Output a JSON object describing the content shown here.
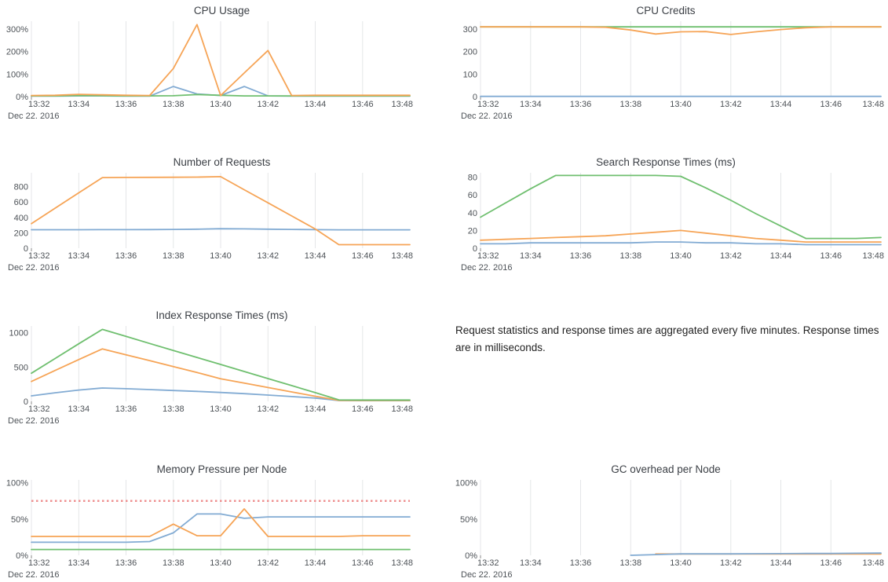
{
  "palette": {
    "blue": "#82abd3",
    "orange": "#f6a456",
    "green": "#6fbf6f",
    "red_dashed": "#ee9090",
    "grid": "#e4e6e8",
    "tick_stub": "#8a8a8a",
    "axis_text": "#4d5257",
    "title_text": "#3c4046"
  },
  "x_axis": {
    "tick_labels": [
      "13:32",
      "13:34",
      "13:36",
      "13:38",
      "13:40",
      "13:42",
      "13:44",
      "13:46",
      "13:48"
    ],
    "date_label": "Dec 22. 2016",
    "range_minutes": [
      0,
      16
    ]
  },
  "note": {
    "text": "Request statistics and response times are aggregated every five minutes. Response times are in milliseconds."
  },
  "chart_data": [
    {
      "type": "line",
      "title": "CPU Usage",
      "col": "left",
      "ylim": [
        0,
        335
      ],
      "yticks": [
        {
          "v": 0,
          "label": "0%"
        },
        {
          "v": 100,
          "label": "100%"
        },
        {
          "v": 200,
          "label": "200%"
        },
        {
          "v": 300,
          "label": "300%"
        }
      ],
      "x_minutes": [
        0,
        1,
        2,
        3,
        4,
        5,
        6,
        7,
        8,
        9,
        10,
        11,
        12,
        13,
        14,
        15,
        16
      ],
      "series": [
        {
          "name": "blue",
          "color_key": "blue",
          "y": [
            2,
            2,
            3,
            3,
            2,
            2,
            45,
            12,
            5,
            45,
            3,
            2,
            2,
            2,
            2,
            2,
            2
          ]
        },
        {
          "name": "green",
          "color_key": "green",
          "y": [
            3,
            3,
            5,
            4,
            3,
            3,
            4,
            9,
            6,
            3,
            3,
            3,
            3,
            3,
            3,
            3,
            3
          ]
        },
        {
          "name": "orange",
          "color_key": "orange",
          "y": [
            5,
            6,
            10,
            8,
            6,
            5,
            125,
            320,
            5,
            105,
            205,
            5,
            6,
            6,
            6,
            6,
            6
          ]
        }
      ]
    },
    {
      "type": "line",
      "title": "CPU Credits",
      "col": "right",
      "ylim": [
        0,
        335
      ],
      "yticks": [
        {
          "v": 0,
          "label": "0"
        },
        {
          "v": 100,
          "label": "100"
        },
        {
          "v": 200,
          "label": "200"
        },
        {
          "v": 300,
          "label": "300"
        }
      ],
      "x_minutes": [
        0,
        1,
        2,
        3,
        4,
        5,
        6,
        7,
        8,
        9,
        10,
        11,
        12,
        13,
        14,
        15,
        16
      ],
      "series": [
        {
          "name": "blue",
          "color_key": "blue",
          "y": [
            1,
            1,
            1,
            1,
            1,
            1,
            1,
            1,
            1,
            1,
            1,
            1,
            1,
            1,
            1,
            1,
            1
          ]
        },
        {
          "name": "green",
          "color_key": "green",
          "y": [
            310,
            310,
            310,
            310,
            310,
            310,
            310,
            310,
            310,
            310,
            310,
            310,
            310,
            310,
            310,
            310,
            310
          ]
        },
        {
          "name": "orange",
          "color_key": "orange",
          "y": [
            310,
            310,
            310,
            310,
            310,
            308,
            296,
            278,
            288,
            289,
            276,
            288,
            298,
            306,
            310,
            310,
            310
          ]
        }
      ]
    },
    {
      "type": "line",
      "title": "Number of Requests",
      "col": "left",
      "ylim": [
        0,
        980
      ],
      "yticks": [
        {
          "v": 0,
          "label": "0"
        },
        {
          "v": 200,
          "label": "200"
        },
        {
          "v": 400,
          "label": "400"
        },
        {
          "v": 600,
          "label": "600"
        },
        {
          "v": 800,
          "label": "800"
        }
      ],
      "x_minutes": [
        0,
        1,
        2,
        3,
        4,
        5,
        6,
        7,
        8,
        9,
        10,
        11,
        12,
        13,
        14,
        15,
        16
      ],
      "series": [
        {
          "name": "blue",
          "color_key": "blue",
          "y": [
            240,
            240,
            240,
            241,
            241,
            242,
            244,
            247,
            253,
            251,
            247,
            244,
            241,
            239,
            239,
            239,
            239
          ]
        },
        {
          "name": "orange",
          "color_key": "orange",
          "y": [
            320,
            520,
            720,
            918,
            920,
            921,
            922,
            924,
            930,
            760,
            590,
            420,
            250,
            46,
            46,
            46,
            46
          ]
        }
      ]
    },
    {
      "type": "line",
      "title": "Search Response Times (ms)",
      "col": "right",
      "ylim": [
        0,
        85
      ],
      "yticks": [
        {
          "v": 0,
          "label": "0"
        },
        {
          "v": 20,
          "label": "20"
        },
        {
          "v": 40,
          "label": "40"
        },
        {
          "v": 60,
          "label": "60"
        },
        {
          "v": 80,
          "label": "80"
        }
      ],
      "x_minutes": [
        0,
        1,
        2,
        3,
        4,
        5,
        6,
        7,
        8,
        9,
        10,
        11,
        12,
        13,
        14,
        15,
        16
      ],
      "series": [
        {
          "name": "blue",
          "color_key": "blue",
          "y": [
            5,
            5,
            6,
            6,
            6,
            6,
            6,
            7,
            7,
            6,
            6,
            5,
            5,
            4,
            4,
            4,
            4
          ]
        },
        {
          "name": "green",
          "color_key": "green",
          "y": [
            35,
            51,
            67,
            82,
            82,
            82,
            82,
            82,
            81,
            68,
            54,
            39,
            25,
            11,
            11,
            11,
            12
          ]
        },
        {
          "name": "orange",
          "color_key": "orange",
          "y": [
            9,
            10,
            11,
            12,
            13,
            14,
            16,
            18,
            20,
            17,
            14,
            11,
            9,
            7,
            7,
            7,
            7
          ]
        }
      ]
    },
    {
      "type": "line",
      "title": "Index Response Times (ms)",
      "col": "left",
      "ylim": [
        0,
        1100
      ],
      "yticks": [
        {
          "v": 0,
          "label": "0"
        },
        {
          "v": 500,
          "label": "500"
        },
        {
          "v": 1000,
          "label": "1000"
        }
      ],
      "x_minutes": [
        0,
        1,
        2,
        3,
        4,
        5,
        6,
        7,
        8,
        9,
        10,
        11,
        12,
        13,
        14,
        15,
        16
      ],
      "series": [
        {
          "name": "blue",
          "color_key": "blue",
          "y": [
            80,
            125,
            165,
            195,
            185,
            172,
            158,
            145,
            130,
            112,
            92,
            70,
            48,
            12,
            10,
            10,
            10
          ]
        },
        {
          "name": "orange",
          "color_key": "orange",
          "y": [
            290,
            450,
            610,
            765,
            680,
            595,
            508,
            420,
            330,
            266,
            202,
            138,
            74,
            15,
            14,
            14,
            14
          ]
        },
        {
          "name": "green",
          "color_key": "green",
          "y": [
            410,
            625,
            840,
            1050,
            948,
            845,
            742,
            640,
            538,
            435,
            332,
            230,
            127,
            22,
            20,
            20,
            20
          ]
        }
      ]
    },
    {
      "type": "line",
      "title": "Memory Pressure per Node",
      "col": "left",
      "ylim": [
        0,
        104
      ],
      "yticks": [
        {
          "v": 0,
          "label": "0%"
        },
        {
          "v": 50,
          "label": "50%"
        },
        {
          "v": 100,
          "label": "100%"
        }
      ],
      "x_minutes": [
        0,
        1,
        2,
        3,
        4,
        5,
        6,
        7,
        8,
        9,
        10,
        11,
        12,
        13,
        14,
        15,
        16
      ],
      "threshold": {
        "v": 75,
        "color_key": "red_dashed",
        "style": "dashed"
      },
      "series": [
        {
          "name": "green",
          "color_key": "green",
          "y": [
            8,
            8,
            8,
            8,
            8,
            8,
            8,
            8,
            8,
            8,
            8,
            8,
            8,
            8,
            8,
            8,
            8
          ]
        },
        {
          "name": "blue",
          "color_key": "blue",
          "y": [
            18,
            18,
            18,
            18,
            18,
            19,
            31,
            57,
            57,
            51,
            53,
            53,
            53,
            53,
            53,
            53,
            53
          ]
        },
        {
          "name": "orange",
          "color_key": "orange",
          "y": [
            26,
            26,
            26,
            26,
            26,
            26,
            43,
            27,
            27,
            64,
            26,
            26,
            26,
            26,
            27,
            27,
            27
          ]
        }
      ]
    },
    {
      "type": "line",
      "title": "GC overhead per Node",
      "col": "right",
      "ylim": [
        0,
        104
      ],
      "yticks": [
        {
          "v": 0,
          "label": "0%"
        },
        {
          "v": 50,
          "label": "50%"
        },
        {
          "v": 100,
          "label": "100%"
        }
      ],
      "x_minutes": [
        0,
        1,
        2,
        3,
        4,
        5,
        6,
        7,
        8,
        9,
        10,
        11,
        12,
        13,
        14,
        15,
        16
      ],
      "series": [
        {
          "name": "orange",
          "color_key": "orange",
          "x": [
            7,
            8,
            9,
            10,
            11,
            12,
            13,
            14,
            15,
            16
          ],
          "y": [
            1.8,
            1.8,
            1.8,
            1.8,
            1.8,
            1.8,
            1.8,
            1.8,
            1.8,
            1.8
          ]
        },
        {
          "name": "blue",
          "color_key": "blue",
          "x": [
            6,
            7,
            8,
            9,
            10,
            11,
            12,
            13,
            14,
            15,
            16
          ],
          "y": [
            0,
            1,
            2,
            2,
            2,
            2.2,
            2.3,
            2.5,
            2.5,
            2.8,
            3
          ]
        }
      ]
    }
  ]
}
